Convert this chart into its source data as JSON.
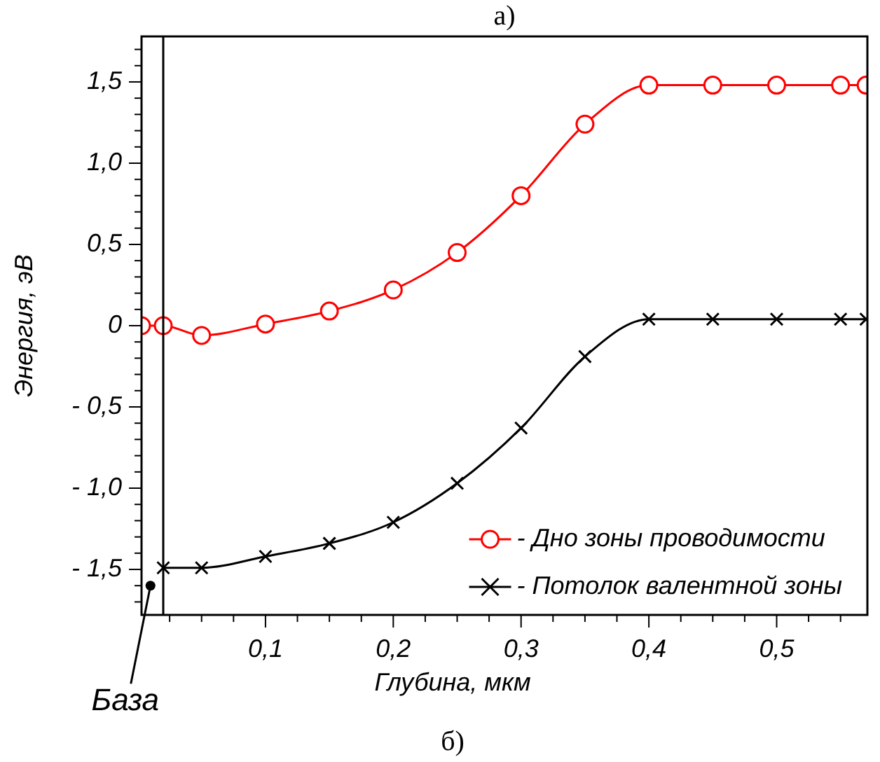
{
  "chart_data": {
    "type": "line",
    "title": "а)",
    "xlabel": "Глубина, мкм",
    "ylabel": "Энергия, эВ",
    "x": [
      0.003,
      0.02,
      0.05,
      0.1,
      0.15,
      0.2,
      0.25,
      0.3,
      0.35,
      0.4,
      0.45,
      0.5,
      0.55,
      0.57
    ],
    "series": [
      {
        "name": "- Дно зоны проводимости",
        "color": "#ff0000",
        "marker": "circle",
        "values": [
          0,
          0,
          -0.06,
          0.01,
          0.09,
          0.22,
          0.45,
          0.8,
          1.24,
          1.48,
          1.48,
          1.48,
          1.48,
          1.48
        ]
      },
      {
        "name": "- Потолок валентной зоны",
        "color": "#000000",
        "marker": "cross",
        "values": [
          null,
          -1.49,
          -1.49,
          -1.42,
          -1.34,
          -1.21,
          -0.97,
          -0.63,
          -0.19,
          0.04,
          0.04,
          0.04,
          0.04,
          0.04
        ]
      }
    ],
    "xlim": [
      0.003,
      0.571
    ],
    "ylim": [
      -1.78,
      1.78
    ],
    "xticks": [
      {
        "value": 0.025,
        "label": null
      },
      {
        "value": 0.05,
        "label": null
      },
      {
        "value": 0.075,
        "label": null
      },
      {
        "value": 0.1,
        "label": "0,1"
      },
      {
        "value": 0.125,
        "label": null
      },
      {
        "value": 0.15,
        "label": null
      },
      {
        "value": 0.175,
        "label": null
      },
      {
        "value": 0.2,
        "label": "0,2"
      },
      {
        "value": 0.225,
        "label": null
      },
      {
        "value": 0.25,
        "label": null
      },
      {
        "value": 0.275,
        "label": null
      },
      {
        "value": 0.3,
        "label": "0,3"
      },
      {
        "value": 0.325,
        "label": null
      },
      {
        "value": 0.35,
        "label": null
      },
      {
        "value": 0.375,
        "label": null
      },
      {
        "value": 0.4,
        "label": "0,4"
      },
      {
        "value": 0.425,
        "label": null
      },
      {
        "value": 0.45,
        "label": null
      },
      {
        "value": 0.475,
        "label": null
      },
      {
        "value": 0.5,
        "label": "0,5"
      },
      {
        "value": 0.525,
        "label": null
      },
      {
        "value": 0.55,
        "label": null
      }
    ],
    "yticks": [
      {
        "value": -1.7,
        "label": null
      },
      {
        "value": -1.6,
        "label": null
      },
      {
        "value": -1.5,
        "label": "- 1,5"
      },
      {
        "value": -1.4,
        "label": null
      },
      {
        "value": -1.3,
        "label": null
      },
      {
        "value": -1.2,
        "label": null
      },
      {
        "value": -1.1,
        "label": null
      },
      {
        "value": -1,
        "label": "- 1,0"
      },
      {
        "value": -0.9,
        "label": null
      },
      {
        "value": -0.8,
        "label": null
      },
      {
        "value": -0.7,
        "label": null
      },
      {
        "value": -0.6,
        "label": null
      },
      {
        "value": -0.5,
        "label": "- 0,5"
      },
      {
        "value": -0.4,
        "label": null
      },
      {
        "value": -0.3,
        "label": null
      },
      {
        "value": -0.2,
        "label": null
      },
      {
        "value": -0.1,
        "label": null
      },
      0,
      {
        "value": 0.1,
        "label": null
      },
      {
        "value": 0.2,
        "label": null
      },
      {
        "value": 0.3,
        "label": null
      },
      {
        "value": 0.4,
        "label": null
      },
      {
        "value": 0.5,
        "label": "0,5"
      },
      {
        "value": 0.6,
        "label": null
      },
      {
        "value": 0.7,
        "label": null
      },
      {
        "value": 0.8,
        "label": null
      },
      {
        "value": 0.9,
        "label": null
      },
      {
        "value": 1,
        "label": "1,0"
      },
      {
        "value": 1.1,
        "label": null
      },
      {
        "value": 1.2,
        "label": null
      },
      {
        "value": 1.3,
        "label": null
      },
      {
        "value": 1.4,
        "label": null
      },
      {
        "value": 1.5,
        "label": "1,5"
      },
      {
        "value": 1.6,
        "label": null
      },
      {
        "value": 1.7,
        "label": null
      }
    ],
    "ref_lines": [
      {
        "axis": "x",
        "value": 0.02,
        "color": "#000000"
      }
    ],
    "annotations": [
      {
        "text": "База",
        "x": 0.01,
        "y": -1.6
      },
      "б)"
    ],
    "legend": "bottom right",
    "grid": false,
    "line_style": "solid"
  }
}
